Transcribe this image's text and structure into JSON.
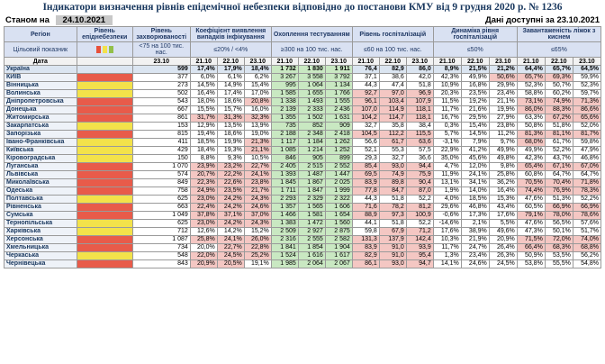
{
  "title": "Індикатори визначення рівнів епідемічної небезпеки відповідно до постанови КМУ від 9 грудня 2020 р. № 1236",
  "as_of_label": "Станом на",
  "as_of_date": "24.10.2021",
  "data_available": "Дані доступні за 23.10.2021",
  "headers": {
    "region": "Регіон",
    "level": "Рівень епіднебезпеки",
    "incidence": "Рівень захворюваності",
    "detection": "Коефіцієнт виявлення випадків інфікування",
    "testing": "Охоплення тестуванням",
    "hosp": "Рівень госпіталізацій",
    "dynamics": "Динаміка рівня госпіталізацій",
    "oxygen": "Завантаженість ліжок з киснем"
  },
  "subheaders": {
    "target": "Цільовий показник",
    "incidence": "<75 на 100 тис. нас.",
    "detection": "≤20% / <4%",
    "testing": "≥300 на 100 тис. нас.",
    "hosp": "≤60 на 100 тис. нас.",
    "dynamics": "≤50%",
    "oxygen": "≤65%"
  },
  "level_colors": [
    "#e8503a",
    "#f3e24a",
    "#92c04a"
  ],
  "dates": {
    "date_label": "Дата",
    "d1": "21.10",
    "d2": "22.10",
    "d3": "23.10"
  },
  "rows": [
    {
      "name": "Україна",
      "lvl": "",
      "inc": "599",
      "det": [
        "17,4%",
        "17,9%",
        "18,4%"
      ],
      "tst": [
        "1 732",
        "1 830",
        "1 911"
      ],
      "hos": [
        "76,4",
        "82,9",
        "86,0"
      ],
      "dyn": [
        "8,9%",
        "21,5%",
        "21,2%"
      ],
      "oxy": [
        "64,4%",
        "65,7%",
        "64,5%"
      ]
    },
    {
      "name": "КИЇВ",
      "lvl": "#e85b4a",
      "inc": "377",
      "det": [
        "6,0%",
        "6,1%",
        "6,2%"
      ],
      "tst": [
        "3 267",
        "3 558",
        "3 792"
      ],
      "hos": [
        "37,1",
        "38,6",
        "42,0"
      ],
      "dyn": [
        "42,3%",
        "49,9%",
        "50,6%"
      ],
      "oxy": [
        "65,7%",
        "69,3%",
        "59,9%"
      ]
    },
    {
      "name": "Вінницька",
      "lvl": "#f3e24a",
      "inc": "273",
      "det": [
        "14,5%",
        "14,9%",
        "15,4%"
      ],
      "tst": [
        "995",
        "1 064",
        "1 134"
      ],
      "hos": [
        "44,3",
        "47,4",
        "51,8"
      ],
      "dyn": [
        "10,9%",
        "16,8%",
        "29,9%"
      ],
      "oxy": [
        "52,3%",
        "50,7%",
        "52,3%"
      ]
    },
    {
      "name": "Волинська",
      "lvl": "#f3e24a",
      "inc": "502",
      "det": [
        "16,4%",
        "17,4%",
        "17,0%"
      ],
      "tst": [
        "1 585",
        "1 655",
        "1 766"
      ],
      "hos": [
        "92,7",
        "97,0",
        "96,9"
      ],
      "dyn": [
        "20,3%",
        "23,5%",
        "23,4%"
      ],
      "oxy": [
        "58,8%",
        "60,2%",
        "59,7%"
      ]
    },
    {
      "name": "Дніпропетровська",
      "lvl": "#e85b4a",
      "inc": "543",
      "det": [
        "18,0%",
        "18,6%",
        "20,8%"
      ],
      "tst": [
        "1 338",
        "1 493",
        "1 555"
      ],
      "hos": [
        "96,1",
        "103,4",
        "107,9"
      ],
      "dyn": [
        "11,5%",
        "19,2%",
        "21,1%"
      ],
      "oxy": [
        "73,1%",
        "74,9%",
        "71,3%"
      ]
    },
    {
      "name": "Донецька",
      "lvl": "#e85b4a",
      "inc": "667",
      "det": [
        "15,5%",
        "15,7%",
        "16,0%"
      ],
      "tst": [
        "2 139",
        "2 333",
        "2 436"
      ],
      "hos": [
        "107,0",
        "114,9",
        "118,1"
      ],
      "dyn": [
        "11,7%",
        "21,6%",
        "19,9%"
      ],
      "oxy": [
        "86,0%",
        "88,3%",
        "86,6%"
      ]
    },
    {
      "name": "Житомирська",
      "lvl": "#e85b4a",
      "inc": "861",
      "det": [
        "31,7%",
        "31,3%",
        "32,3%"
      ],
      "tst": [
        "1 355",
        "1 502",
        "1 631"
      ],
      "hos": [
        "104,2",
        "114,7",
        "118,1"
      ],
      "dyn": [
        "16,7%",
        "29,5%",
        "27,9%"
      ],
      "oxy": [
        "63,3%",
        "67,2%",
        "65,6%"
      ]
    },
    {
      "name": "Закарпатська",
      "lvl": "#f3e24a",
      "inc": "153",
      "det": [
        "12,9%",
        "13,5%",
        "13,9%"
      ],
      "tst": [
        "735",
        "852",
        "909"
      ],
      "hos": [
        "32,7",
        "35,8",
        "38,4"
      ],
      "dyn": [
        "0,3%",
        "15,4%",
        "23,8%"
      ],
      "oxy": [
        "50,8%",
        "51,8%",
        "52,0%"
      ]
    },
    {
      "name": "Запорізька",
      "lvl": "#e85b4a",
      "inc": "815",
      "det": [
        "19,4%",
        "18,6%",
        "19,0%"
      ],
      "tst": [
        "2 188",
        "2 348",
        "2 418"
      ],
      "hos": [
        "104,5",
        "112,2",
        "115,5"
      ],
      "dyn": [
        "5,7%",
        "14,5%",
        "11,2%"
      ],
      "oxy": [
        "81,3%",
        "81,1%",
        "81,7%"
      ]
    },
    {
      "name": "Івано-Франківська",
      "lvl": "#f3e24a",
      "inc": "411",
      "det": [
        "18,5%",
        "19,9%",
        "21,3%"
      ],
      "tst": [
        "1 117",
        "1 184",
        "1 262"
      ],
      "hos": [
        "56,6",
        "61,7",
        "63,6"
      ],
      "dyn": [
        "-3,1%",
        "7,9%",
        "9,7%"
      ],
      "oxy": [
        "68,0%",
        "61,7%",
        "59,8%"
      ]
    },
    {
      "name": "Київська",
      "lvl": "#f3e24a",
      "inc": "429",
      "det": [
        "18,4%",
        "19,3%",
        "21,1%"
      ],
      "tst": [
        "1 085",
        "1 214",
        "1 252"
      ],
      "hos": [
        "52,1",
        "55,3",
        "57,5"
      ],
      "dyn": [
        "22,9%",
        "41,2%",
        "49,9%"
      ],
      "oxy": [
        "49,9%",
        "52,2%",
        "47,9%"
      ]
    },
    {
      "name": "Кіровоградська",
      "lvl": "#f3e24a",
      "inc": "150",
      "det": [
        "8,8%",
        "9,3%",
        "10,5%"
      ],
      "tst": [
        "846",
        "905",
        "899"
      ],
      "hos": [
        "29,3",
        "32,7",
        "36,6"
      ],
      "dyn": [
        "35,0%",
        "45,6%",
        "49,8%"
      ],
      "oxy": [
        "42,3%",
        "43,7%",
        "46,8%"
      ]
    },
    {
      "name": "Луганська",
      "lvl": "#e85b4a",
      "inc": "1 070",
      "det": [
        "23,9%",
        "23,2%",
        "22,7%"
      ],
      "tst": [
        "2 405",
        "2 515",
        "2 552"
      ],
      "hos": [
        "85,4",
        "93,0",
        "94,4"
      ],
      "dyn": [
        "4,7%",
        "12,0%",
        "9,8%"
      ],
      "oxy": [
        "65,4%",
        "67,1%",
        "67,0%"
      ]
    },
    {
      "name": "Львівська",
      "lvl": "#e85b4a",
      "inc": "574",
      "det": [
        "20,7%",
        "22,2%",
        "24,1%"
      ],
      "tst": [
        "1 393",
        "1 487",
        "1 447"
      ],
      "hos": [
        "69,5",
        "74,9",
        "75,9"
      ],
      "dyn": [
        "11,9%",
        "24,1%",
        "25,8%"
      ],
      "oxy": [
        "60,8%",
        "64,7%",
        "64,7%"
      ]
    },
    {
      "name": "Миколаївська",
      "lvl": "#e85b4a",
      "inc": "849",
      "det": [
        "22,3%",
        "22,6%",
        "23,8%"
      ],
      "tst": [
        "1 845",
        "1 867",
        "2 025"
      ],
      "hos": [
        "83,9",
        "89,8",
        "90,4"
      ],
      "dyn": [
        "13,1%",
        "34,1%",
        "36,2%"
      ],
      "oxy": [
        "70,5%",
        "70,4%",
        "71,8%"
      ]
    },
    {
      "name": "Одеська",
      "lvl": "#e85b4a",
      "inc": "758",
      "det": [
        "24,9%",
        "23,5%",
        "21,7%"
      ],
      "tst": [
        "1 711",
        "1 847",
        "1 999"
      ],
      "hos": [
        "77,8",
        "84,7",
        "87,0"
      ],
      "dyn": [
        "1,9%",
        "14,0%",
        "16,4%"
      ],
      "oxy": [
        "74,4%",
        "76,9%",
        "78,3%"
      ]
    },
    {
      "name": "Полтавська",
      "lvl": "#f3e24a",
      "inc": "625",
      "det": [
        "23,0%",
        "24,2%",
        "24,3%"
      ],
      "tst": [
        "2 293",
        "2 329",
        "2 322"
      ],
      "hos": [
        "44,3",
        "51,8",
        "52,2"
      ],
      "dyn": [
        "4,0%",
        "18,5%",
        "15,3%"
      ],
      "oxy": [
        "47,6%",
        "51,3%",
        "52,2%"
      ]
    },
    {
      "name": "Рівненська",
      "lvl": "#e85b4a",
      "inc": "663",
      "det": [
        "22,4%",
        "24,2%",
        "24,6%"
      ],
      "tst": [
        "1 357",
        "1 565",
        "1 606"
      ],
      "hos": [
        "71,6",
        "78,2",
        "81,2"
      ],
      "dyn": [
        "29,6%",
        "46,8%",
        "43,4%"
      ],
      "oxy": [
        "60,5%",
        "66,9%",
        "66,9%"
      ]
    },
    {
      "name": "Сумська",
      "lvl": "#e85b4a",
      "inc": "1 049",
      "det": [
        "37,8%",
        "37,1%",
        "37,0%"
      ],
      "tst": [
        "1 466",
        "1 581",
        "1 654"
      ],
      "hos": [
        "88,9",
        "97,3",
        "100,9"
      ],
      "dyn": [
        "-0,6%",
        "17,3%",
        "17,6%"
      ],
      "oxy": [
        "79,1%",
        "78,0%",
        "78,6%"
      ]
    },
    {
      "name": "Тернопільська",
      "lvl": "#f3e24a",
      "inc": "625",
      "det": [
        "23,0%",
        "24,2%",
        "24,3%"
      ],
      "tst": [
        "1 383",
        "1 472",
        "1 560"
      ],
      "hos": [
        "44,1",
        "51,8",
        "52,2"
      ],
      "dyn": [
        "-14,6%",
        "2,1%",
        "5,5%"
      ],
      "oxy": [
        "47,6%",
        "56,5%",
        "57,6%"
      ]
    },
    {
      "name": "Харківська",
      "lvl": "#f3e24a",
      "inc": "712",
      "det": [
        "12,6%",
        "14,2%",
        "15,2%"
      ],
      "tst": [
        "2 509",
        "2 927",
        "2 875"
      ],
      "hos": [
        "59,8",
        "67,9",
        "71,2"
      ],
      "dyn": [
        "17,6%",
        "38,9%",
        "49,6%"
      ],
      "oxy": [
        "47,3%",
        "50,1%",
        "51,7%"
      ]
    },
    {
      "name": "Херсонська",
      "lvl": "#e85b4a",
      "inc": "1 087",
      "det": [
        "25,8%",
        "24,1%",
        "26,0%"
      ],
      "tst": [
        "2 316",
        "2 555",
        "2 582"
      ],
      "hos": [
        "131,3",
        "137,9",
        "142,4"
      ],
      "dyn": [
        "10,3%",
        "21,9%",
        "20,9%"
      ],
      "oxy": [
        "71,5%",
        "72,0%",
        "74,0%"
      ]
    },
    {
      "name": "Хмельницька",
      "lvl": "#e85b4a",
      "inc": "734",
      "det": [
        "20,0%",
        "22,7%",
        "22,8%"
      ],
      "tst": [
        "1 841",
        "1 854",
        "1 904"
      ],
      "hos": [
        "83,9",
        "91,0",
        "93,9"
      ],
      "dyn": [
        "11,7%",
        "24,7%",
        "26,4%"
      ],
      "oxy": [
        "66,4%",
        "68,3%",
        "68,8%"
      ]
    },
    {
      "name": "Черкаська",
      "lvl": "#f3e24a",
      "inc": "548",
      "det": [
        "22,0%",
        "24,5%",
        "25,2%"
      ],
      "tst": [
        "1 524",
        "1 616",
        "1 617"
      ],
      "hos": [
        "82,9",
        "91,0",
        "95,4"
      ],
      "dyn": [
        "1,3%",
        "23,4%",
        "26,3%"
      ],
      "oxy": [
        "50,9%",
        "53,5%",
        "56,2%"
      ]
    },
    {
      "name": "Чернівецька",
      "lvl": "#e85b4a",
      "inc": "843",
      "det": [
        "20,9%",
        "20,5%",
        "19,1%"
      ],
      "tst": [
        "1 985",
        "2 064",
        "2 067"
      ],
      "hos": [
        "86,1",
        "93,0",
        "94,7"
      ],
      "dyn": [
        "14,1%",
        "24,6%",
        "24,5%"
      ],
      "oxy": [
        "53,8%",
        "55,5%",
        "54,8%"
      ]
    }
  ],
  "highlight": {
    "red": "#f4c7c3",
    "green": "#c9e8c2",
    "yellow": "#fff2b3"
  }
}
